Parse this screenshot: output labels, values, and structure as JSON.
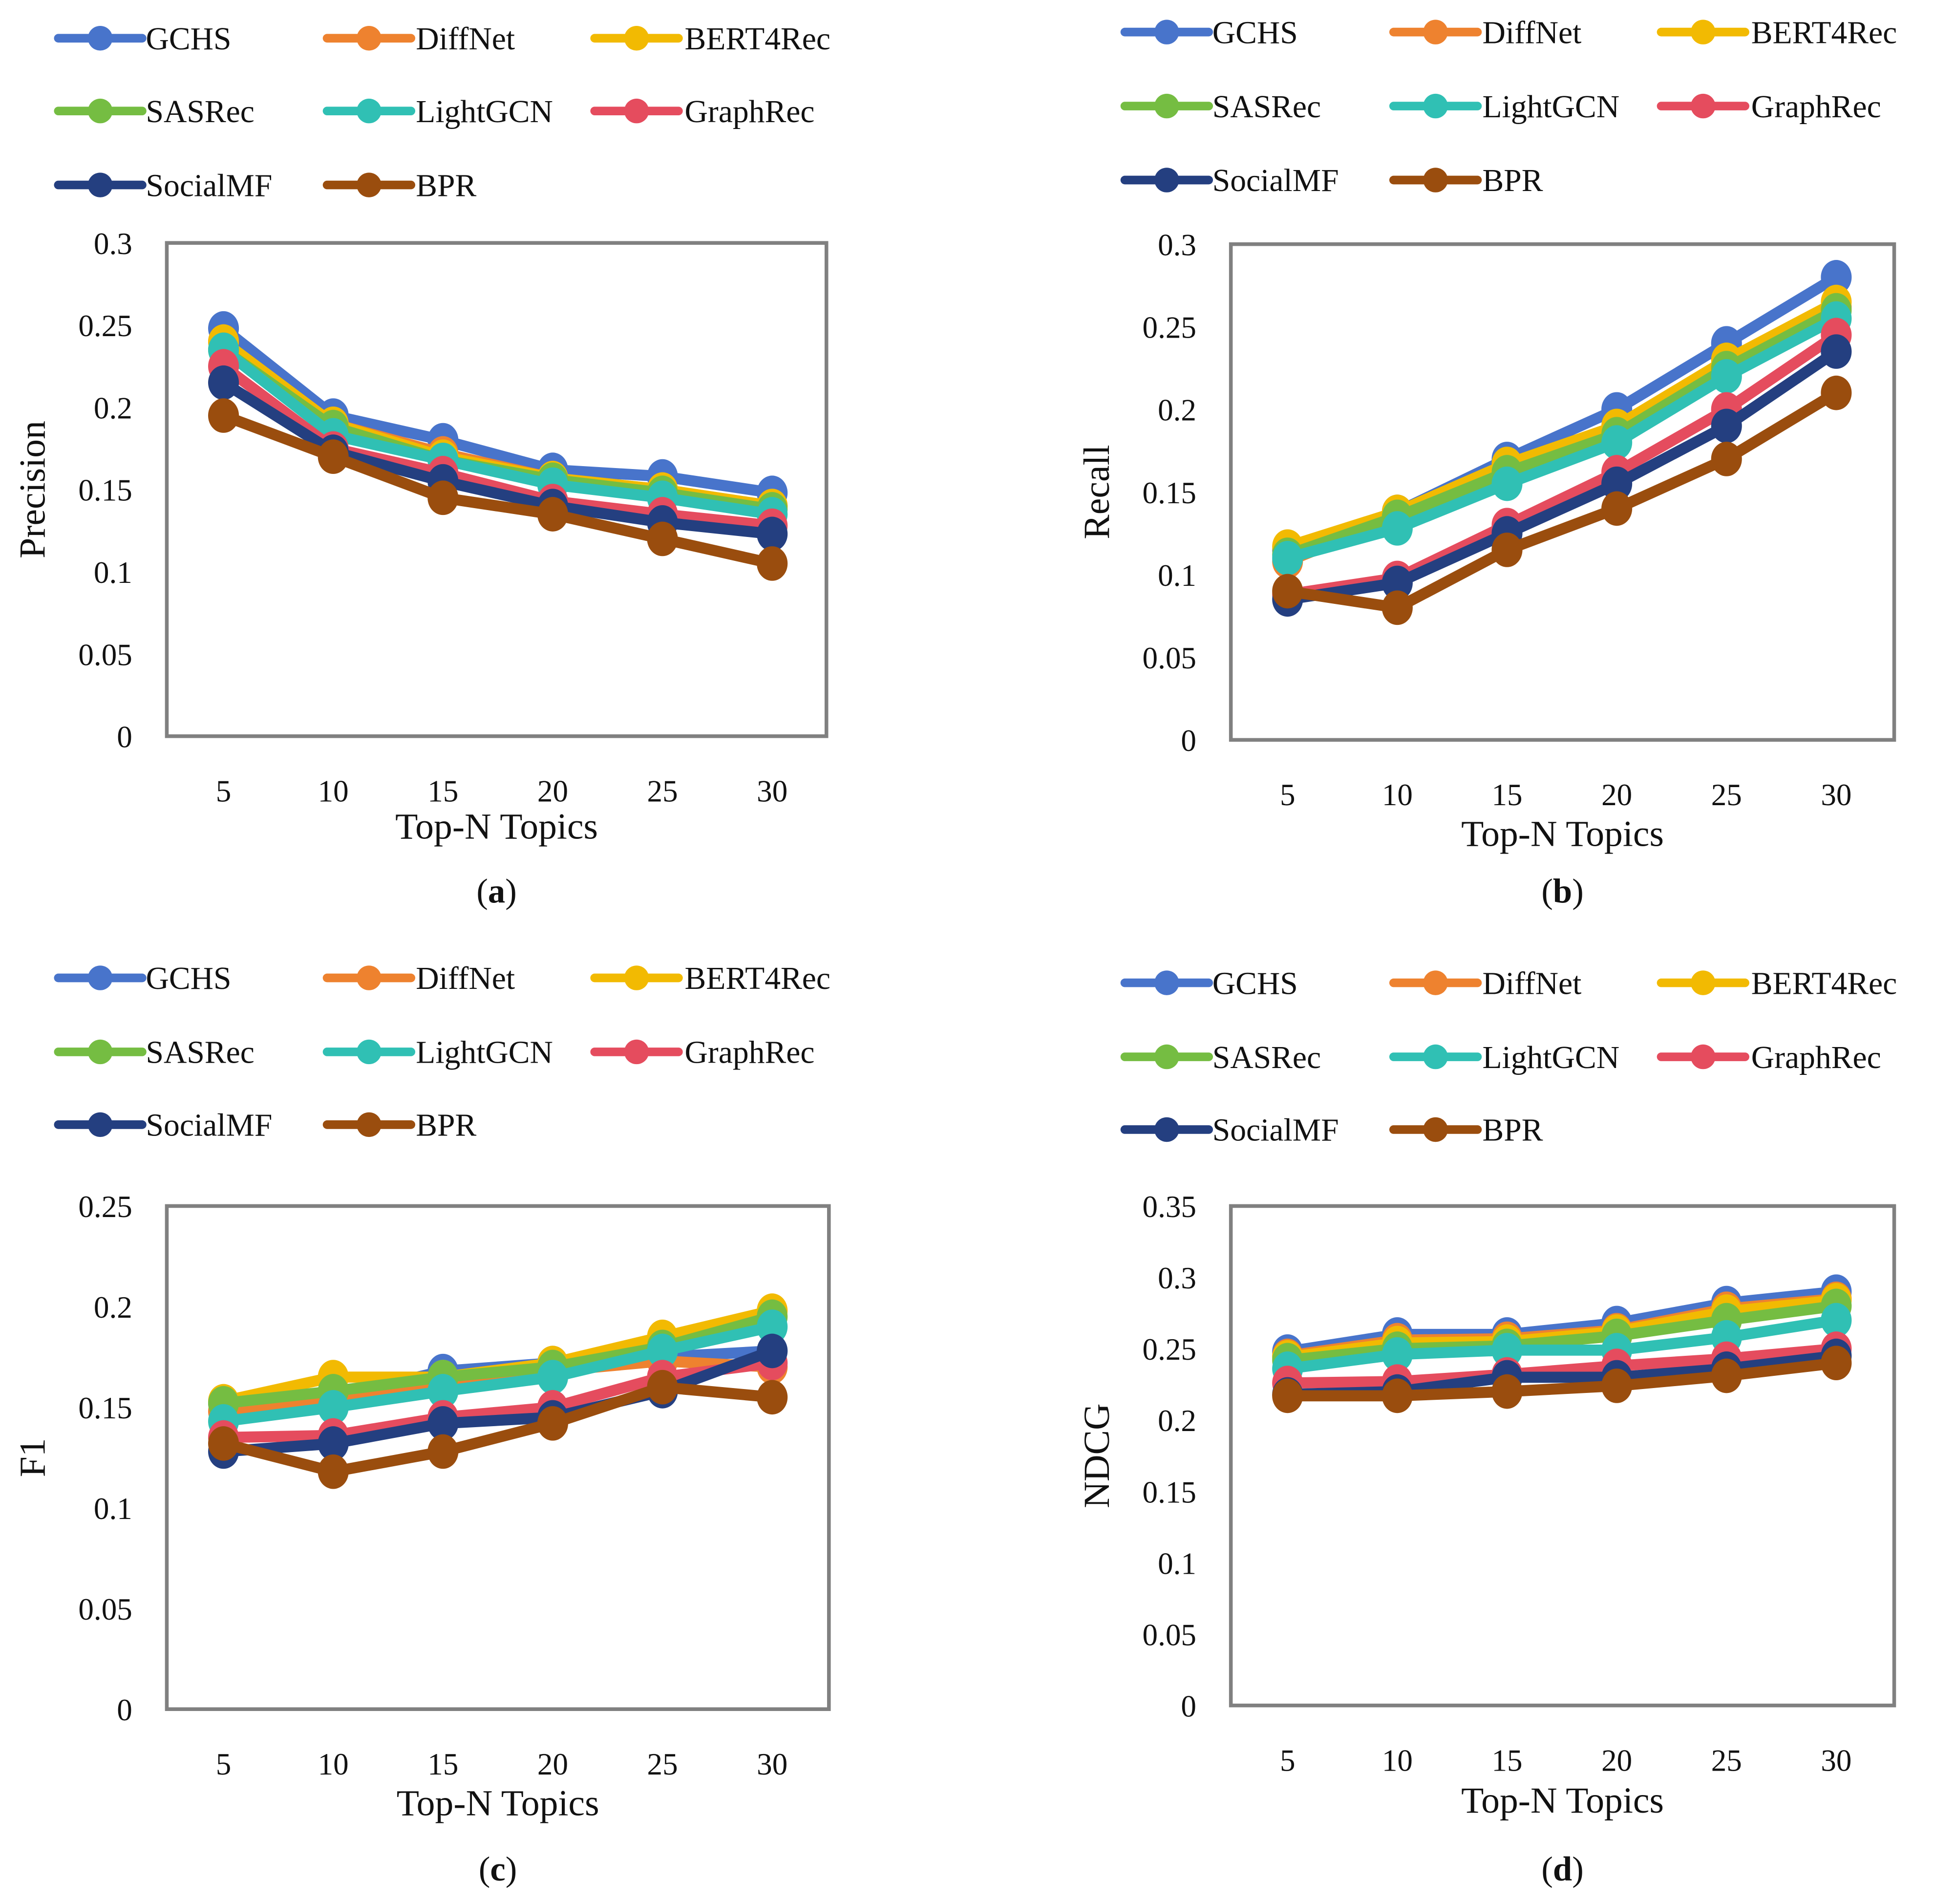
{
  "legend_colors": {
    "GCHS": "#4874CB",
    "DiffNet": "#EE822F",
    "BERT4Rec": "#F2BA02",
    "SASRec": "#75BD42",
    "LightGCN": "#30C0B4",
    "GraphRec": "#E54C5E",
    "SocialMF": "#243F80",
    "BPR": "#9A4D0E"
  },
  "frame_color": "#808080",
  "chart_data": [
    {
      "type": "line",
      "caption_letter": "a",
      "ylabel": "Precision",
      "xlabel": "Top-N Topics",
      "x": [
        5,
        10,
        15,
        20,
        25,
        30
      ],
      "ylim": [
        0,
        0.3
      ],
      "yticks": [
        "0",
        "0.05",
        "0.1",
        "0.15",
        "0.2",
        "0.25",
        "0.3"
      ],
      "ytick_values": [
        0,
        0.05,
        0.1,
        0.15,
        0.2,
        0.25,
        0.3
      ],
      "legend": "top",
      "grid": false,
      "series": [
        {
          "name": "GCHS",
          "values": [
            0.248,
            0.195,
            0.18,
            0.162,
            0.158,
            0.148
          ]
        },
        {
          "name": "DiffNet",
          "values": [
            0.24,
            0.19,
            0.172,
            0.157,
            0.15,
            0.14
          ]
        },
        {
          "name": "BERT4Rec",
          "values": [
            0.24,
            0.19,
            0.17,
            0.157,
            0.15,
            0.14
          ]
        },
        {
          "name": "SASRec",
          "values": [
            0.235,
            0.188,
            0.168,
            0.156,
            0.148,
            0.138
          ]
        },
        {
          "name": "LightGCN",
          "values": [
            0.235,
            0.183,
            0.168,
            0.153,
            0.145,
            0.135
          ]
        },
        {
          "name": "GraphRec",
          "values": [
            0.225,
            0.175,
            0.16,
            0.143,
            0.135,
            0.128
          ]
        },
        {
          "name": "SocialMF",
          "values": [
            0.215,
            0.173,
            0.155,
            0.14,
            0.13,
            0.123
          ]
        },
        {
          "name": "BPR",
          "values": [
            0.195,
            0.17,
            0.145,
            0.135,
            0.12,
            0.105
          ]
        }
      ]
    },
    {
      "type": "line",
      "caption_letter": "b",
      "ylabel": "Recall",
      "xlabel": "Top-N Topics",
      "x": [
        5,
        10,
        15,
        20,
        25,
        30
      ],
      "ylim": [
        0,
        0.3
      ],
      "yticks": [
        "0",
        "0.05",
        "0.1",
        "0.15",
        "0.2",
        "0.25",
        "0.3"
      ],
      "ytick_values": [
        0,
        0.05,
        0.1,
        0.15,
        0.2,
        0.25,
        0.3
      ],
      "legend": "top",
      "grid": false,
      "series": [
        {
          "name": "GCHS",
          "values": [
            0.115,
            0.138,
            0.17,
            0.2,
            0.24,
            0.28
          ]
        },
        {
          "name": "DiffNet",
          "values": [
            0.108,
            0.135,
            0.165,
            0.188,
            0.228,
            0.262
          ]
        },
        {
          "name": "BERT4Rec",
          "values": [
            0.117,
            0.138,
            0.167,
            0.19,
            0.23,
            0.265
          ]
        },
        {
          "name": "SASRec",
          "values": [
            0.112,
            0.135,
            0.162,
            0.185,
            0.225,
            0.26
          ]
        },
        {
          "name": "LightGCN",
          "values": [
            0.11,
            0.128,
            0.155,
            0.18,
            0.22,
            0.255
          ]
        },
        {
          "name": "GraphRec",
          "values": [
            0.088,
            0.098,
            0.13,
            0.162,
            0.2,
            0.245
          ]
        },
        {
          "name": "SocialMF",
          "values": [
            0.085,
            0.095,
            0.125,
            0.155,
            0.19,
            0.235
          ]
        },
        {
          "name": "BPR",
          "values": [
            0.09,
            0.08,
            0.115,
            0.14,
            0.17,
            0.21
          ]
        }
      ]
    },
    {
      "type": "line",
      "caption_letter": "c",
      "ylabel": "F1",
      "xlabel": "Top-N Topics",
      "x": [
        5,
        10,
        15,
        20,
        25,
        30
      ],
      "ylim": [
        0,
        0.25
      ],
      "yticks": [
        "0",
        "0.05",
        "0.1",
        "0.15",
        "0.2",
        "0.25"
      ],
      "ytick_values": [
        0,
        0.05,
        0.1,
        0.15,
        0.2,
        0.25
      ],
      "legend": "top",
      "grid": false,
      "series": [
        {
          "name": "GCHS",
          "values": [
            0.152,
            0.155,
            0.168,
            0.172,
            0.175,
            0.178
          ]
        },
        {
          "name": "DiffNet",
          "values": [
            0.148,
            0.155,
            0.162,
            0.168,
            0.173,
            0.17
          ]
        },
        {
          "name": "BERT4Rec",
          "values": [
            0.153,
            0.165,
            0.165,
            0.172,
            0.185,
            0.198
          ]
        },
        {
          "name": "SASRec",
          "values": [
            0.152,
            0.158,
            0.165,
            0.17,
            0.18,
            0.195
          ]
        },
        {
          "name": "LightGCN",
          "values": [
            0.143,
            0.15,
            0.158,
            0.165,
            0.178,
            0.19
          ]
        },
        {
          "name": "GraphRec",
          "values": [
            0.135,
            0.136,
            0.145,
            0.15,
            0.165,
            0.172
          ]
        },
        {
          "name": "SocialMF",
          "values": [
            0.128,
            0.132,
            0.142,
            0.145,
            0.158,
            0.178
          ]
        },
        {
          "name": "BPR",
          "values": [
            0.132,
            0.118,
            0.128,
            0.142,
            0.16,
            0.155
          ]
        }
      ]
    },
    {
      "type": "line",
      "caption_letter": "d",
      "ylabel": "NDCG",
      "xlabel": "Top-N Topics",
      "x": [
        5,
        10,
        15,
        20,
        25,
        30
      ],
      "ylim": [
        0,
        0.35
      ],
      "yticks": [
        "0",
        "0.05",
        "0.1",
        "0.15",
        "0.2",
        "0.25",
        "0.3",
        "0.35"
      ],
      "ytick_values": [
        0,
        0.05,
        0.1,
        0.15,
        0.2,
        0.25,
        0.3,
        0.35
      ],
      "legend": "top",
      "grid": false,
      "series": [
        {
          "name": "GCHS",
          "values": [
            0.248,
            0.26,
            0.26,
            0.268,
            0.282,
            0.29
          ]
        },
        {
          "name": "DiffNet",
          "values": [
            0.245,
            0.256,
            0.257,
            0.263,
            0.278,
            0.285
          ]
        },
        {
          "name": "BERT4Rec",
          "values": [
            0.244,
            0.254,
            0.255,
            0.262,
            0.276,
            0.284
          ]
        },
        {
          "name": "SASRec",
          "values": [
            0.242,
            0.25,
            0.252,
            0.259,
            0.27,
            0.28
          ]
        },
        {
          "name": "LightGCN",
          "values": [
            0.236,
            0.246,
            0.249,
            0.249,
            0.258,
            0.27
          ]
        },
        {
          "name": "GraphRec",
          "values": [
            0.226,
            0.227,
            0.232,
            0.238,
            0.243,
            0.25
          ]
        },
        {
          "name": "SocialMF",
          "values": [
            0.218,
            0.22,
            0.23,
            0.23,
            0.236,
            0.245
          ]
        },
        {
          "name": "BPR",
          "values": [
            0.217,
            0.217,
            0.22,
            0.224,
            0.231,
            0.24
          ]
        }
      ]
    }
  ]
}
